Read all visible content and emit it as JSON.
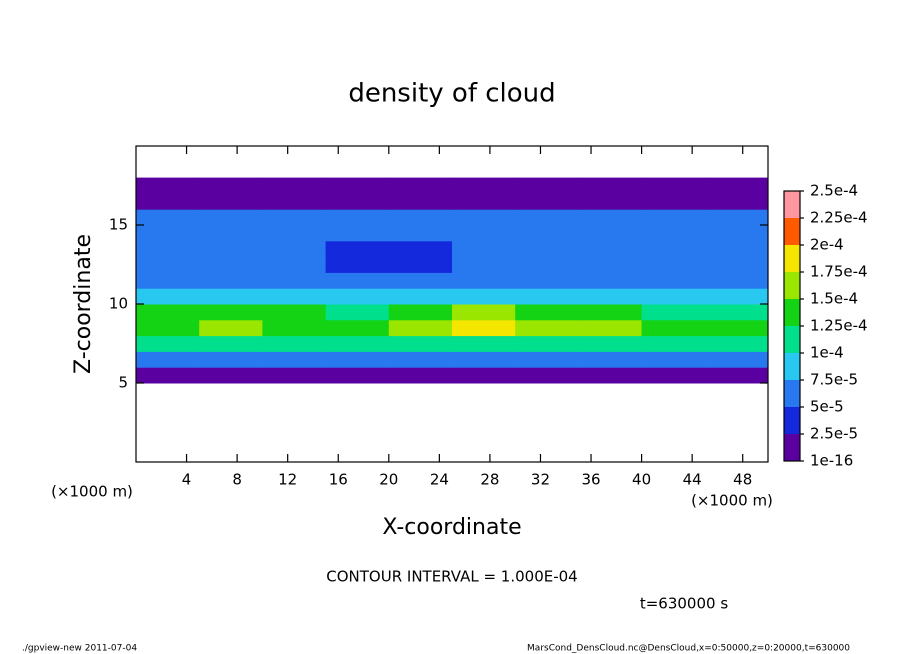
{
  "chart_data": {
    "type": "heatmap",
    "title": "density of cloud",
    "x_label": "X-coordinate",
    "y_label": "Z-coordinate",
    "x_unit": "(×1000 m)",
    "xlim": [
      0,
      50
    ],
    "ylim": [
      0,
      20
    ],
    "xticks": [
      4,
      8,
      12,
      16,
      20,
      24,
      28,
      32,
      36,
      40,
      44,
      48
    ],
    "yticks": [
      5,
      10,
      15
    ],
    "x": [
      2.5,
      7.5,
      12.5,
      17.5,
      22.5,
      27.5,
      32.5,
      37.5,
      42.5,
      47.5
    ],
    "z": [
      0.5,
      1.5,
      2.5,
      3.5,
      4.5,
      5.5,
      6.5,
      7.5,
      8.5,
      9.5,
      10.5,
      11.5,
      12.5,
      13.5,
      14.5,
      15.5,
      16.5,
      17.5,
      18.5,
      19.5
    ],
    "values": [
      [
        null,
        null,
        null,
        null,
        null,
        null,
        null,
        null,
        null,
        null
      ],
      [
        null,
        null,
        null,
        null,
        null,
        null,
        null,
        null,
        null,
        null
      ],
      [
        null,
        null,
        null,
        null,
        null,
        null,
        null,
        null,
        null,
        null
      ],
      [
        null,
        null,
        null,
        null,
        null,
        null,
        null,
        null,
        null,
        null
      ],
      [
        null,
        null,
        null,
        null,
        null,
        null,
        null,
        null,
        null,
        null
      ],
      [
        1e-05,
        1e-05,
        1e-05,
        1e-05,
        1e-05,
        1e-05,
        1e-05,
        1e-05,
        1e-05,
        1e-05
      ],
      [
        6e-05,
        6e-05,
        6e-05,
        6e-05,
        6e-05,
        6e-05,
        6e-05,
        6e-05,
        6e-05,
        6e-05
      ],
      [
        0.00011,
        0.00011,
        0.00011,
        0.00011,
        0.00011,
        0.00011,
        0.00011,
        0.00011,
        0.00011,
        0.00011
      ],
      [
        0.00014,
        0.00015,
        0.00014,
        0.00014,
        0.00015,
        0.00018,
        0.00017,
        0.00015,
        0.00014,
        0.00013
      ],
      [
        0.00013,
        0.00013,
        0.00013,
        0.00012,
        0.00013,
        0.00015,
        0.00014,
        0.00013,
        0.00012,
        0.00012
      ],
      [
        9e-05,
        9e-05,
        9e-05,
        8e-05,
        9e-05,
        9e-05,
        9e-05,
        9e-05,
        9e-05,
        9e-05
      ],
      [
        7e-05,
        7e-05,
        6e-05,
        6e-05,
        6e-05,
        7e-05,
        7e-05,
        7e-05,
        7e-05,
        7e-05
      ],
      [
        6e-05,
        6e-05,
        5e-05,
        4e-05,
        4e-05,
        6e-05,
        6e-05,
        6e-05,
        6e-05,
        6e-05
      ],
      [
        6e-05,
        6e-05,
        5e-05,
        4e-05,
        4e-05,
        5e-05,
        6e-05,
        6e-05,
        6e-05,
        6e-05
      ],
      [
        6e-05,
        6e-05,
        6e-05,
        6e-05,
        5e-05,
        6e-05,
        6e-05,
        6e-05,
        6e-05,
        6e-05
      ],
      [
        5e-05,
        5e-05,
        5e-05,
        5e-05,
        5e-05,
        5e-05,
        5e-05,
        5e-05,
        5e-05,
        5e-05
      ],
      [
        2e-05,
        2e-05,
        2e-05,
        2e-05,
        2e-05,
        2e-05,
        2e-05,
        2e-05,
        2e-05,
        2e-05
      ],
      [
        5e-06,
        5e-06,
        5e-06,
        5e-06,
        5e-06,
        5e-06,
        5e-06,
        5e-06,
        5e-06,
        5e-06
      ],
      [
        null,
        null,
        null,
        null,
        null,
        null,
        null,
        null,
        null,
        null
      ],
      [
        null,
        null,
        null,
        null,
        null,
        null,
        null,
        null,
        null,
        null
      ]
    ],
    "colorbar": {
      "ticks": [
        {
          "value": 1e-16,
          "label": "1e-16"
        },
        {
          "value": 2.5e-05,
          "label": "2.5e-5"
        },
        {
          "value": 5e-05,
          "label": "5e-5"
        },
        {
          "value": 7.5e-05,
          "label": "7.5e-5"
        },
        {
          "value": 0.0001,
          "label": "1e-4"
        },
        {
          "value": 0.000125,
          "label": "1.25e-4"
        },
        {
          "value": 0.00015,
          "label": "1.5e-4"
        },
        {
          "value": 0.000175,
          "label": "1.75e-4"
        },
        {
          "value": 0.0002,
          "label": "2e-4"
        },
        {
          "value": 0.000225,
          "label": "2.25e-4"
        },
        {
          "value": 0.00025,
          "label": "2.5e-4"
        }
      ],
      "colors": [
        "#5a00a0",
        "#1428dc",
        "#2878f0",
        "#28c8f0",
        "#00e08c",
        "#14d214",
        "#9be600",
        "#f5e600",
        "#ff5a00",
        "#ff96a0"
      ]
    },
    "contour_note": "CONTOUR INTERVAL = 1.000E-04",
    "time_note": "t=630000 s",
    "footer_left": "./gpview-new  2011-07-04",
    "footer_right": "MarsCond_DensCloud.nc@DensCloud,x=0:50000,z=0:20000,t=630000"
  }
}
